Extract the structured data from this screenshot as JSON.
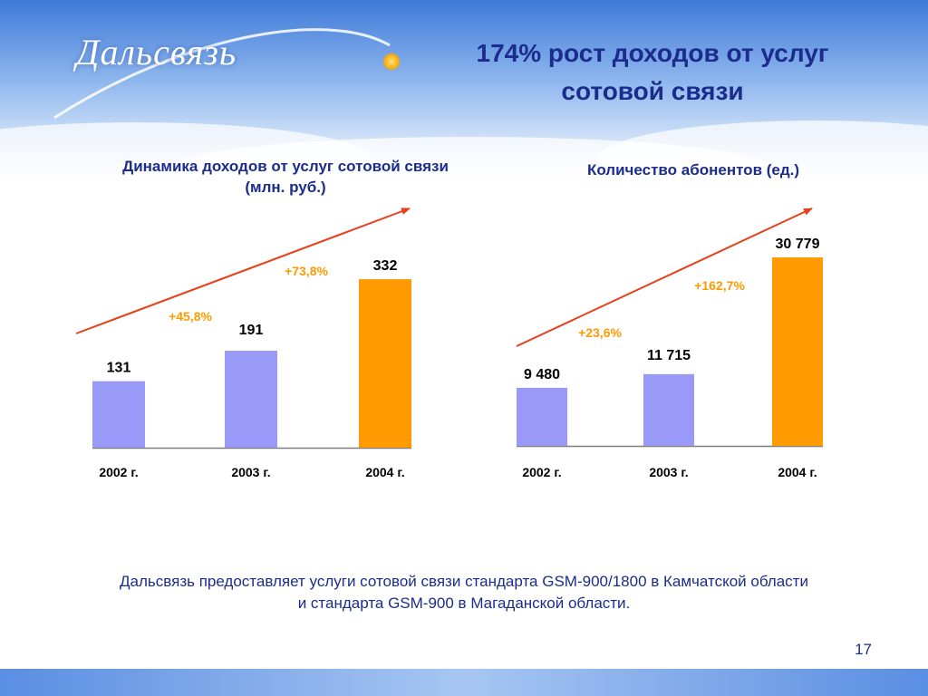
{
  "header": {
    "logo_text": "Дальсвязь",
    "title_line1": "174% рост доходов от услуг",
    "title_line2": "сотовой связи"
  },
  "colors": {
    "bar_default": "#9999f7",
    "bar_highlight": "#ff9a00",
    "growth_label": "#ff9a00",
    "arrow": "#e8401c",
    "text": "#1c2c8c",
    "value_text": "#000000"
  },
  "chart_data": [
    {
      "type": "bar",
      "title_line1": "Динамика доходов от услуг сотовой связи",
      "title_line2": "(млн. руб.)",
      "categories": [
        "2002 г.",
        "2003 г.",
        "2004 г."
      ],
      "values": [
        131,
        191,
        332
      ],
      "value_labels": [
        "131",
        "191",
        "332"
      ],
      "growth_labels": [
        "+45,8%",
        "+73,8%"
      ],
      "ylim": [
        0,
        350
      ],
      "grid": false,
      "legend": "none"
    },
    {
      "type": "bar",
      "title_line1": "Количество абонентов (ед.)",
      "title_line2": "",
      "categories": [
        "2002 г.",
        "2003 г.",
        "2004 г."
      ],
      "values": [
        9480,
        11715,
        30779
      ],
      "value_labels": [
        "9 480",
        "11 715",
        "30 779"
      ],
      "growth_labels": [
        "+23,6%",
        "+162,7%"
      ],
      "ylim": [
        0,
        30779
      ],
      "grid": false,
      "legend": "none"
    }
  ],
  "footer": {
    "line1": "Дальсвязь предоставляет услуги сотовой связи стандарта GSM-900/1800 в Камчатской области",
    "line2": "и стандарта GSM-900 в Магаданской области."
  },
  "page_number": "17"
}
